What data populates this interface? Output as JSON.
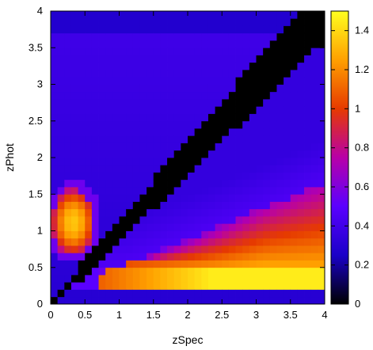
{
  "chart_data": {
    "type": "heatmap",
    "xlabel": "zSpec",
    "ylabel": "zPhot",
    "xlim": [
      0,
      4
    ],
    "ylim": [
      0,
      4
    ],
    "x_ticks": [
      "0",
      "0.5",
      "1",
      "1.5",
      "2",
      "2.5",
      "3",
      "3.5",
      "4"
    ],
    "y_ticks": [
      "0",
      "0.5",
      "1",
      "1.5",
      "2",
      "2.5",
      "3",
      "3.5",
      "4"
    ],
    "colorbar": {
      "range": [
        0,
        1.5
      ],
      "ticks": [
        "0",
        "0.2",
        "0.4",
        "0.6",
        "0.8",
        "1",
        "1.2",
        "1.4"
      ],
      "colormap": [
        "#000000",
        "#1a00c8",
        "#5a00ff",
        "#b800a8",
        "#e63a00",
        "#ffa000",
        "#ffff20"
      ]
    },
    "grid": {
      "x_bins": 40,
      "y_bins": 40,
      "bin_size": 0.1,
      "description_of_values": "heat value per (zSpec, zPhot) bin"
    },
    "features": [
      {
        "name": "diagonal",
        "zSpec": [
          0,
          4
        ],
        "zPhot": [
          0,
          4
        ],
        "value": 0.0
      },
      {
        "name": "lower-right band",
        "zSpec": [
          0.7,
          4
        ],
        "zPhot": [
          0.3,
          0.55
        ],
        "value": 1.45
      },
      {
        "name": "lower-right plume",
        "zSpec": [
          1.5,
          4
        ],
        "zPhot": [
          0.55,
          1.55
        ],
        "value": 0.95
      },
      {
        "name": "left blob",
        "zSpec": [
          0.05,
          0.65
        ],
        "zPhot": [
          0.7,
          1.6
        ],
        "value": 1.3
      },
      {
        "name": "background",
        "value": 0.35
      }
    ]
  }
}
